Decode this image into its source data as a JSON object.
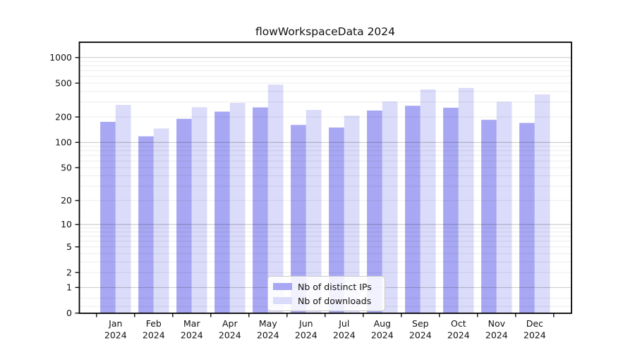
{
  "figure": {
    "title": "flowWorkspaceData 2024"
  },
  "chart_data": {
    "type": "bar",
    "title": "flowWorkspaceData 2024",
    "categories": [
      "Jan",
      "Feb",
      "Mar",
      "Apr",
      "May",
      "Jun",
      "Jul",
      "Aug",
      "Sep",
      "Oct",
      "Nov",
      "Dec"
    ],
    "category_year": "2024",
    "series": [
      {
        "name": "Nb of distinct IPs",
        "color": "#a7a7f3",
        "values": [
          175,
          118,
          190,
          231,
          259,
          161,
          150,
          238,
          271,
          257,
          185,
          170
        ]
      },
      {
        "name": "Nb of downloads",
        "color": "#dbdbfa",
        "values": [
          277,
          146,
          260,
          293,
          480,
          242,
          207,
          304,
          422,
          439,
          302,
          368
        ]
      }
    ],
    "xlabel": "",
    "ylabel": "",
    "yscale": "log10(value+1)",
    "yticks": [
      1000,
      500,
      200,
      100,
      50,
      20,
      10,
      5,
      2,
      1,
      0
    ],
    "ylim": [
      0,
      1500
    ],
    "grid": true,
    "legend": {
      "position": "inside-bottom-center",
      "entries": [
        "Nb of distinct IPs",
        "Nb of downloads"
      ]
    }
  },
  "colors": {
    "background": "#ffffff",
    "axis": "#000000",
    "tick_text": "#111111",
    "grid_minor": "#ececec",
    "grid_major": "#c8c8c8",
    "legend_border": "#cccccc"
  }
}
